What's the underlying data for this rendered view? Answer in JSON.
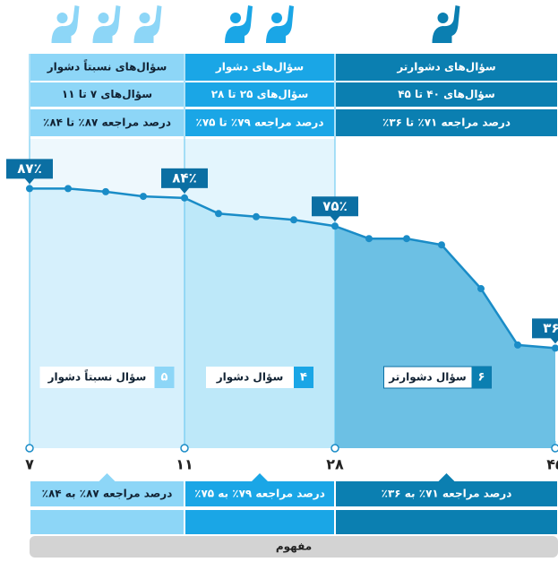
{
  "chart_data": {
    "type": "line",
    "categories": [
      "۷",
      null,
      null,
      null,
      "۱۱",
      null,
      null,
      null,
      "۲۸",
      null,
      null,
      null,
      null,
      null,
      "۴۵"
    ],
    "values": [
      87,
      87,
      86,
      84.5,
      84,
      79,
      78,
      77,
      75,
      71,
      71,
      69,
      55,
      37,
      36
    ],
    "value_labels": [
      "۸۷٪",
      null,
      null,
      null,
      "۸۴٪",
      null,
      null,
      null,
      "۷۵٪",
      null,
      null,
      null,
      null,
      null,
      "۳۶٪"
    ],
    "color": "#1a8cc7",
    "zones": [
      {
        "header": "سؤال‌های نسبتاً دشوار",
        "range": "سؤال‌های ۷ تا ۱۱",
        "percent": "درصد مراجعه ۸۷٪ تا ۸۴٪",
        "count": "۵",
        "label": "سؤال نسبتاً دشوار",
        "bottom": "درصد مراجعه ۸۷٪ به ۸۴٪",
        "color": "#8dd6f7"
      },
      {
        "header": "سؤال‌های دشوار",
        "range": "سؤال‌های ۲۵ تا ۲۸",
        "percent": "درصد مراجعه ۷۹٪ تا ۷۵٪",
        "count": "۴",
        "label": "سؤال دشوار",
        "bottom": "درصد مراجعه ۷۹٪ به ۷۵٪",
        "color": "#1aa6e6"
      },
      {
        "header": "سؤال‌های دشوارتر",
        "range": "سؤال‌های ۴۰ تا ۴۵",
        "percent": "درصد مراجعه ۷۱٪ تا ۳۶٪",
        "count": "۶",
        "label": "سؤال دشوارتر",
        "bottom": "درصد مراجعه ۷۱٪ به ۳۶٪",
        "color": "#0b7fb1"
      }
    ],
    "footer": "مفهوم"
  }
}
